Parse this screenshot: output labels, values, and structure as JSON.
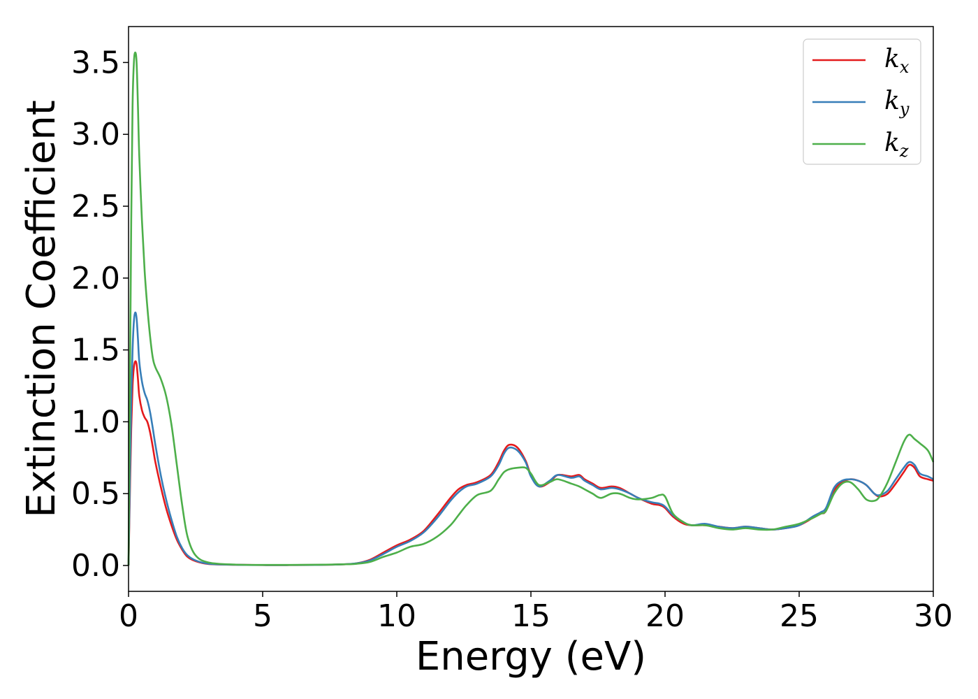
{
  "chart_data": {
    "type": "line",
    "title": "",
    "xlabel": "Energy (eV)",
    "ylabel": "Extinction Coefficient",
    "xlim": [
      0,
      30
    ],
    "ylim": [
      -0.18,
      3.75
    ],
    "xticks": [
      0,
      5,
      10,
      15,
      20,
      25,
      30
    ],
    "xtick_labels": [
      "0",
      "5",
      "10",
      "15",
      "20",
      "25",
      "30"
    ],
    "yticks": [
      0.0,
      0.5,
      1.0,
      1.5,
      2.0,
      2.5,
      3.0,
      3.5
    ],
    "ytick_labels": [
      "0.0",
      "0.5",
      "1.0",
      "1.5",
      "2.0",
      "2.5",
      "3.0",
      "3.5"
    ],
    "grid": false,
    "legend_position": "top-right",
    "series": [
      {
        "name": "kx",
        "legend_base": "k",
        "legend_sub": "x",
        "color": "#e41a1c",
        "x": [
          0,
          0.05,
          0.1,
          0.15,
          0.2,
          0.25,
          0.3,
          0.35,
          0.4,
          0.5,
          0.6,
          0.7,
          0.8,
          0.9,
          1.0,
          1.2,
          1.4,
          1.6,
          1.8,
          2.0,
          2.2,
          2.5,
          3.0,
          4.0,
          5.0,
          6.0,
          7.0,
          8.0,
          8.5,
          9.0,
          9.5,
          10.0,
          10.5,
          11.0,
          11.5,
          12.0,
          12.3,
          12.6,
          13.0,
          13.5,
          13.8,
          14.0,
          14.2,
          14.5,
          14.8,
          15.0,
          15.3,
          15.7,
          16.0,
          16.5,
          16.8,
          17.0,
          17.3,
          17.6,
          18.0,
          18.3,
          18.7,
          19.0,
          19.5,
          19.8,
          20.0,
          20.3,
          20.7,
          21.0,
          21.5,
          22.0,
          22.5,
          23.0,
          23.5,
          24.0,
          24.5,
          25.0,
          25.5,
          25.8,
          26.0,
          26.3,
          26.6,
          26.9,
          27.2,
          27.5,
          27.8,
          28.0,
          28.3,
          28.6,
          28.9,
          29.1,
          29.3,
          29.5,
          29.8,
          30.0
        ],
        "y": [
          0.0,
          0.5,
          0.95,
          1.25,
          1.38,
          1.42,
          1.4,
          1.3,
          1.18,
          1.08,
          1.03,
          1.0,
          0.93,
          0.83,
          0.72,
          0.55,
          0.4,
          0.28,
          0.18,
          0.11,
          0.06,
          0.03,
          0.01,
          0.005,
          0.003,
          0.003,
          0.004,
          0.008,
          0.015,
          0.04,
          0.09,
          0.14,
          0.18,
          0.24,
          0.35,
          0.47,
          0.53,
          0.56,
          0.58,
          0.63,
          0.72,
          0.8,
          0.84,
          0.82,
          0.73,
          0.63,
          0.55,
          0.58,
          0.63,
          0.62,
          0.63,
          0.6,
          0.57,
          0.54,
          0.55,
          0.54,
          0.5,
          0.47,
          0.43,
          0.42,
          0.4,
          0.34,
          0.29,
          0.28,
          0.28,
          0.27,
          0.26,
          0.27,
          0.26,
          0.25,
          0.26,
          0.28,
          0.33,
          0.36,
          0.38,
          0.52,
          0.58,
          0.6,
          0.59,
          0.56,
          0.5,
          0.48,
          0.5,
          0.57,
          0.65,
          0.7,
          0.68,
          0.62,
          0.6,
          0.59
        ]
      },
      {
        "name": "ky",
        "legend_base": "k",
        "legend_sub": "y",
        "color": "#377eb8",
        "x": [
          0,
          0.05,
          0.1,
          0.15,
          0.2,
          0.25,
          0.3,
          0.35,
          0.4,
          0.5,
          0.6,
          0.7,
          0.8,
          0.9,
          1.0,
          1.2,
          1.4,
          1.6,
          1.8,
          2.0,
          2.2,
          2.5,
          3.0,
          4.0,
          5.0,
          6.0,
          7.0,
          8.0,
          8.5,
          9.0,
          9.5,
          10.0,
          10.5,
          11.0,
          11.5,
          12.0,
          12.3,
          12.6,
          13.0,
          13.5,
          13.8,
          14.0,
          14.2,
          14.5,
          14.8,
          15.0,
          15.3,
          15.7,
          16.0,
          16.5,
          16.8,
          17.0,
          17.3,
          17.6,
          18.0,
          18.3,
          18.7,
          19.0,
          19.5,
          19.8,
          20.0,
          20.3,
          20.7,
          21.0,
          21.5,
          22.0,
          22.5,
          23.0,
          23.5,
          24.0,
          24.5,
          25.0,
          25.5,
          25.8,
          26.0,
          26.3,
          26.6,
          26.9,
          27.2,
          27.5,
          27.8,
          28.0,
          28.3,
          28.6,
          28.9,
          29.1,
          29.3,
          29.5,
          29.8,
          30.0
        ],
        "y": [
          0.0,
          0.6,
          1.15,
          1.5,
          1.7,
          1.76,
          1.72,
          1.58,
          1.42,
          1.28,
          1.2,
          1.15,
          1.07,
          0.96,
          0.84,
          0.63,
          0.46,
          0.32,
          0.2,
          0.12,
          0.07,
          0.035,
          0.012,
          0.005,
          0.003,
          0.003,
          0.004,
          0.008,
          0.015,
          0.035,
          0.08,
          0.13,
          0.17,
          0.23,
          0.33,
          0.45,
          0.51,
          0.55,
          0.57,
          0.62,
          0.7,
          0.78,
          0.82,
          0.8,
          0.72,
          0.62,
          0.55,
          0.59,
          0.63,
          0.61,
          0.62,
          0.59,
          0.56,
          0.53,
          0.54,
          0.53,
          0.5,
          0.47,
          0.44,
          0.43,
          0.41,
          0.35,
          0.3,
          0.28,
          0.29,
          0.27,
          0.26,
          0.27,
          0.26,
          0.25,
          0.26,
          0.28,
          0.34,
          0.37,
          0.4,
          0.54,
          0.59,
          0.6,
          0.59,
          0.56,
          0.5,
          0.49,
          0.52,
          0.6,
          0.68,
          0.72,
          0.7,
          0.64,
          0.62,
          0.6
        ]
      },
      {
        "name": "kz",
        "legend_base": "k",
        "legend_sub": "z",
        "color": "#4daf4a",
        "x": [
          0,
          0.05,
          0.1,
          0.15,
          0.2,
          0.25,
          0.3,
          0.35,
          0.4,
          0.5,
          0.6,
          0.7,
          0.8,
          0.9,
          1.0,
          1.2,
          1.4,
          1.6,
          1.8,
          2.0,
          2.2,
          2.5,
          3.0,
          4.0,
          5.0,
          6.0,
          7.0,
          8.0,
          8.5,
          9.0,
          9.5,
          10.0,
          10.5,
          11.0,
          11.5,
          12.0,
          12.3,
          12.6,
          13.0,
          13.5,
          13.8,
          14.0,
          14.2,
          14.5,
          14.8,
          15.0,
          15.3,
          15.7,
          16.0,
          16.5,
          16.8,
          17.0,
          17.3,
          17.6,
          18.0,
          18.3,
          18.7,
          19.0,
          19.5,
          19.8,
          20.0,
          20.3,
          20.7,
          21.0,
          21.5,
          22.0,
          22.5,
          23.0,
          23.5,
          24.0,
          24.5,
          25.0,
          25.5,
          25.8,
          26.0,
          26.3,
          26.6,
          26.9,
          27.2,
          27.5,
          27.8,
          28.0,
          28.3,
          28.6,
          28.9,
          29.1,
          29.3,
          29.5,
          29.8,
          30.0
        ],
        "y": [
          0.0,
          1.2,
          2.4,
          3.2,
          3.5,
          3.57,
          3.5,
          3.2,
          2.85,
          2.4,
          2.05,
          1.8,
          1.6,
          1.45,
          1.38,
          1.3,
          1.18,
          0.98,
          0.7,
          0.42,
          0.2,
          0.07,
          0.02,
          0.006,
          0.004,
          0.004,
          0.005,
          0.008,
          0.012,
          0.025,
          0.06,
          0.09,
          0.13,
          0.15,
          0.2,
          0.28,
          0.35,
          0.42,
          0.49,
          0.52,
          0.6,
          0.65,
          0.67,
          0.68,
          0.68,
          0.64,
          0.56,
          0.58,
          0.6,
          0.57,
          0.55,
          0.53,
          0.5,
          0.47,
          0.5,
          0.5,
          0.47,
          0.46,
          0.47,
          0.49,
          0.48,
          0.36,
          0.3,
          0.28,
          0.28,
          0.26,
          0.25,
          0.26,
          0.25,
          0.25,
          0.27,
          0.29,
          0.33,
          0.36,
          0.38,
          0.5,
          0.57,
          0.58,
          0.53,
          0.46,
          0.45,
          0.48,
          0.58,
          0.72,
          0.86,
          0.91,
          0.88,
          0.85,
          0.8,
          0.72
        ]
      }
    ]
  }
}
